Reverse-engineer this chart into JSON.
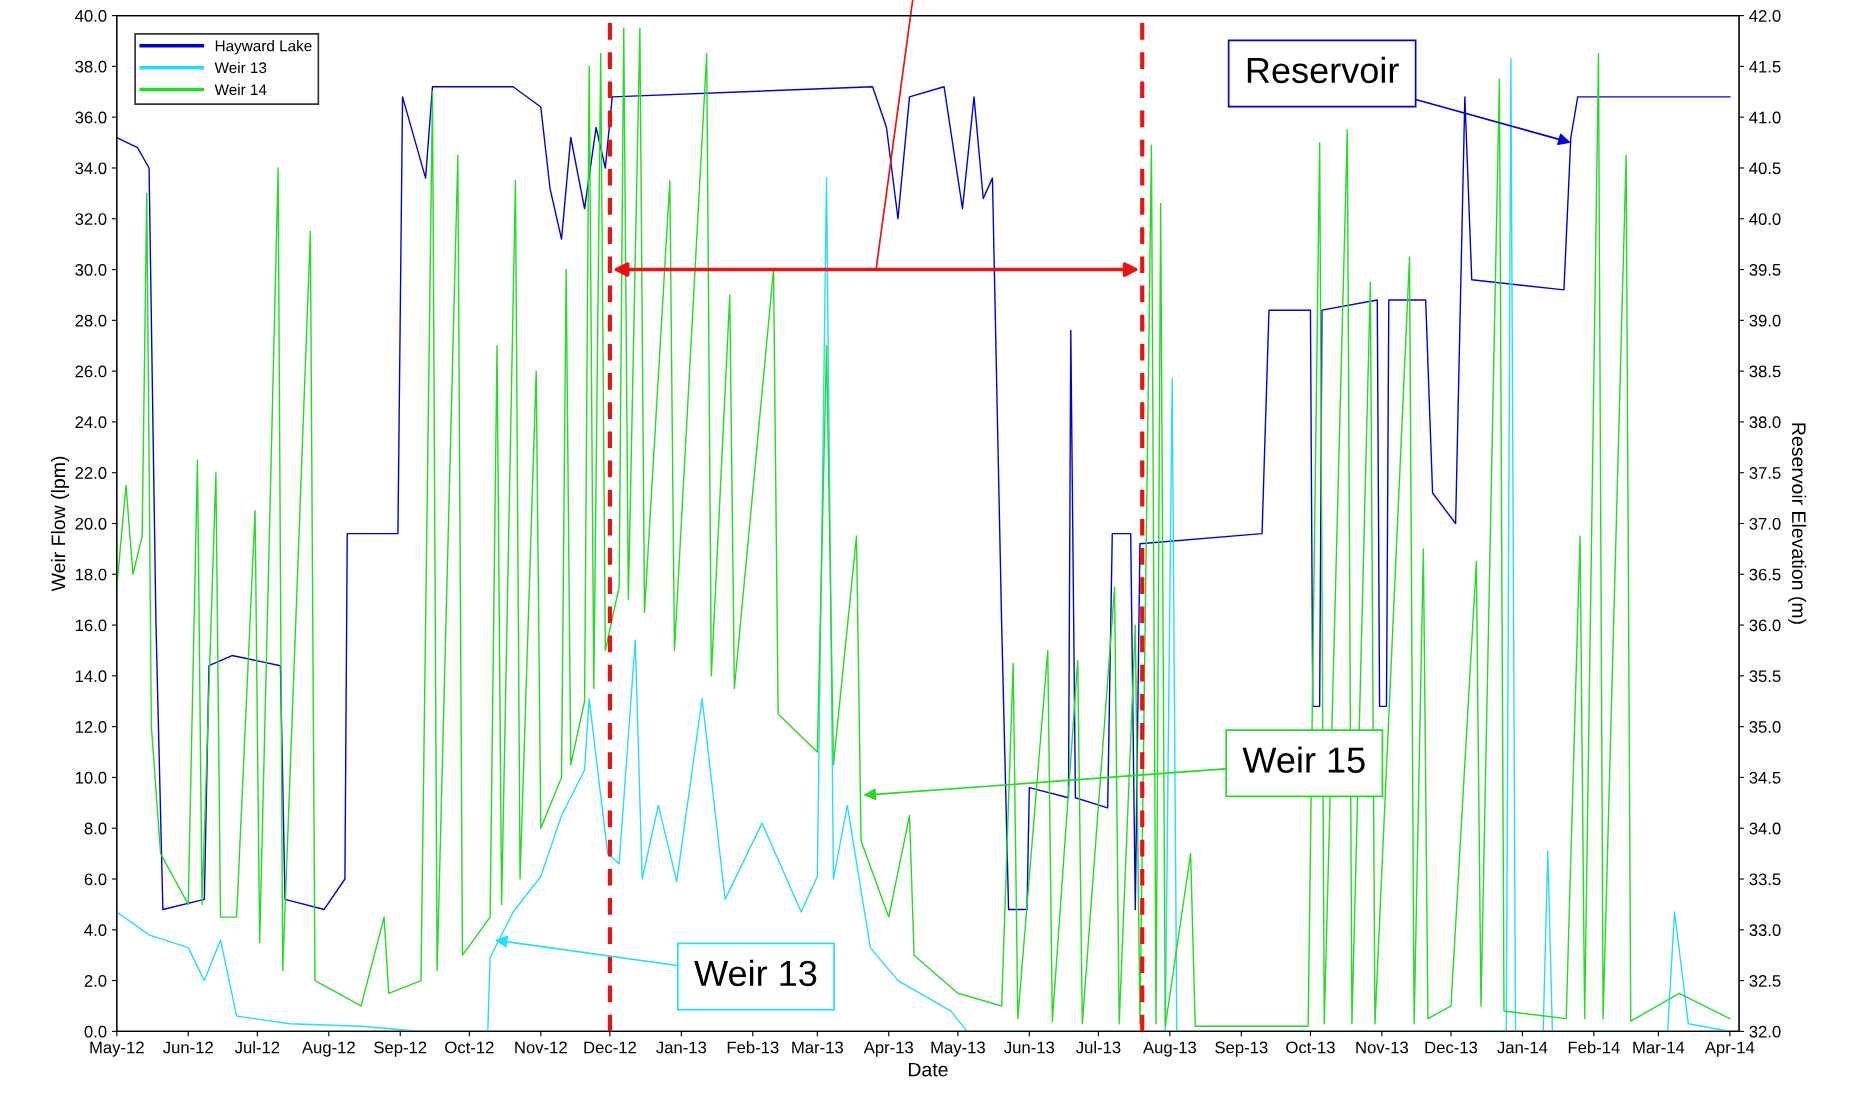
{
  "chart_data": {
    "type": "line",
    "xlabel": "Date",
    "ylabel": "Weir Flow (lpm)",
    "y2label": "Reservoir Elevation (m)",
    "xlim": [
      "2012-05-01",
      "2014-04-05"
    ],
    "xticks": [
      {
        "value": "2012-05-01",
        "label": "May-12"
      },
      {
        "value": "2012-06-01",
        "label": "Jun-12"
      },
      {
        "value": "2012-07-01",
        "label": "Jul-12"
      },
      {
        "value": "2012-08-01",
        "label": "Aug-12"
      },
      {
        "value": "2012-09-01",
        "label": "Sep-12"
      },
      {
        "value": "2012-10-01",
        "label": "Oct-12"
      },
      {
        "value": "2012-11-01",
        "label": "Nov-12"
      },
      {
        "value": "2012-12-01",
        "label": "Dec-12"
      },
      {
        "value": "2013-01-01",
        "label": "Jan-13"
      },
      {
        "value": "2013-02-01",
        "label": "Feb-13"
      },
      {
        "value": "2013-03-01",
        "label": "Mar-13"
      },
      {
        "value": "2013-04-01",
        "label": "Apr-13"
      },
      {
        "value": "2013-05-01",
        "label": "May-13"
      },
      {
        "value": "2013-06-01",
        "label": "Jun-13"
      },
      {
        "value": "2013-07-01",
        "label": "Jul-13"
      },
      {
        "value": "2013-08-01",
        "label": "Aug-13"
      },
      {
        "value": "2013-09-01",
        "label": "Sep-13"
      },
      {
        "value": "2013-10-01",
        "label": "Oct-13"
      },
      {
        "value": "2013-11-01",
        "label": "Nov-13"
      },
      {
        "value": "2013-12-01",
        "label": "Dec-13"
      },
      {
        "value": "2014-01-01",
        "label": "Jan-14"
      },
      {
        "value": "2014-02-01",
        "label": "Feb-14"
      },
      {
        "value": "2014-03-01",
        "label": "Mar-14"
      },
      {
        "value": "2014-04-01",
        "label": "Apr-14"
      }
    ],
    "ylim": [
      0,
      40
    ],
    "yticks": [
      {
        "value": 0,
        "label": "0.0"
      },
      {
        "value": 2,
        "label": "2.0"
      },
      {
        "value": 4,
        "label": "4.0"
      },
      {
        "value": 6,
        "label": "6.0"
      },
      {
        "value": 8,
        "label": "8.0"
      },
      {
        "value": 10,
        "label": "10.0"
      },
      {
        "value": 12,
        "label": "12.0"
      },
      {
        "value": 14,
        "label": "14.0"
      },
      {
        "value": 16,
        "label": "16.0"
      },
      {
        "value": 18,
        "label": "18.0"
      },
      {
        "value": 20,
        "label": "20.0"
      },
      {
        "value": 22,
        "label": "22.0"
      },
      {
        "value": 24,
        "label": "24.0"
      },
      {
        "value": 26,
        "label": "26.0"
      },
      {
        "value": 28,
        "label": "28.0"
      },
      {
        "value": 30,
        "label": "30.0"
      },
      {
        "value": 32,
        "label": "32.0"
      },
      {
        "value": 34,
        "label": "34.0"
      },
      {
        "value": 36,
        "label": "36.0"
      },
      {
        "value": 38,
        "label": "38.0"
      },
      {
        "value": 40,
        "label": "40.0"
      }
    ],
    "y2lim": [
      32,
      42
    ],
    "y2ticks": [
      {
        "value": 32,
        "label": "32.0"
      },
      32.5,
      {
        "value": 33,
        "label": "33.0"
      },
      33.5,
      {
        "value": 34,
        "label": "34.0"
      },
      34.5,
      {
        "value": 35,
        "label": "35.0"
      },
      35.5,
      {
        "value": 36,
        "label": "36.0"
      },
      36.5,
      {
        "value": 37,
        "label": "37.0"
      },
      37.5,
      {
        "value": 38,
        "label": "38.0"
      },
      38.5,
      {
        "value": 39,
        "label": "39.0"
      },
      39.5,
      {
        "value": 40,
        "label": "40.0"
      },
      40.5,
      {
        "value": 41,
        "label": "41.0"
      },
      41.5,
      {
        "value": 42,
        "label": "42.0"
      }
    ],
    "legend": "top left",
    "grid": false,
    "marker": "none",
    "line_style": "solid",
    "ref_lines": [
      {
        "axis": "x",
        "value": "2012-12-01",
        "color": "#ee1111",
        "line_style": "dashed"
      },
      {
        "axis": "x",
        "value": "2013-07-20",
        "color": "#ee1111",
        "line_style": "dashed"
      }
    ],
    "annotations": [
      {
        "text": "Reservoir",
        "x": "2014-01-22",
        "y": 35.0
      },
      {
        "text": "Weir 15",
        "x": "2013-03-21",
        "y": 9.3
      },
      {
        "text": "Weir 13",
        "x": "2012-10-12",
        "y": 3.6
      }
    ],
    "series": [
      {
        "name": "Hayward Lake",
        "color": "#0000dd",
        "axis": "y2",
        "x": [
          "2012-05-01",
          "2012-05-10",
          "2012-05-15",
          "2012-05-18",
          "2012-05-21",
          "2012-06-08",
          "2012-06-10",
          "2012-06-20",
          "2012-07-11",
          "2012-07-13",
          "2012-07-30",
          "2012-08-08",
          "2012-08-09",
          "2012-08-31",
          "2012-09-02",
          "2012-09-12",
          "2012-09-15",
          "2012-10-20",
          "2012-11-01",
          "2012-11-05",
          "2012-11-10",
          "2012-11-14",
          "2012-11-20",
          "2012-11-25",
          "2012-11-29",
          "2012-12-02",
          "2013-03-25",
          "2013-03-31",
          "2013-04-05",
          "2013-04-10",
          "2013-04-25",
          "2013-05-03",
          "2013-05-08",
          "2013-05-12",
          "2013-05-16",
          "2013-05-20",
          "2013-05-23",
          "2013-05-31",
          "2013-06-01",
          "2013-06-18",
          "2013-06-19",
          "2013-06-21",
          "2013-07-05",
          "2013-07-07",
          "2013-07-15",
          "2013-07-17",
          "2013-07-19",
          "2013-09-10",
          "2013-09-13",
          "2013-10-01",
          "2013-10-02",
          "2013-10-05",
          "2013-10-06",
          "2013-10-30",
          "2013-10-31",
          "2013-11-03",
          "2013-11-04",
          "2013-11-20",
          "2013-11-23",
          "2013-12-03",
          "2013-12-07",
          "2013-12-10",
          "2014-01-19",
          "2014-01-22",
          "2014-01-25",
          "2014-04-01"
        ],
        "values": [
          40.8,
          40.7,
          40.5,
          36.0,
          33.2,
          33.3,
          35.6,
          35.7,
          35.6,
          33.3,
          33.2,
          33.5,
          36.9,
          36.9,
          41.2,
          40.4,
          41.3,
          41.3,
          41.1,
          40.3,
          39.8,
          40.8,
          40.1,
          40.9,
          40.5,
          41.2,
          41.3,
          40.9,
          40.0,
          41.2,
          41.3,
          40.1,
          41.2,
          40.2,
          40.4,
          36.0,
          33.2,
          33.2,
          34.4,
          34.3,
          38.9,
          34.3,
          34.2,
          36.9,
          36.9,
          33.2,
          36.8,
          36.9,
          39.1,
          39.1,
          35.2,
          35.2,
          39.1,
          39.2,
          35.2,
          35.2,
          39.2,
          39.2,
          37.3,
          37.0,
          41.2,
          39.4,
          39.3,
          40.8,
          41.2,
          41.2
        ]
      },
      {
        "name": "Weir 13",
        "color": "#22ddff",
        "x": [
          "2012-05-01",
          "2012-05-15",
          "2012-06-01",
          "2012-06-08",
          "2012-06-15",
          "2012-06-22",
          "2012-07-15",
          "2012-08-15",
          "2012-09-10",
          "2012-10-09",
          "2012-10-10",
          "2012-10-20",
          "2012-11-01",
          "2012-11-10",
          "2012-11-20",
          "2012-11-22",
          "2012-11-30",
          "2012-12-05",
          "2012-12-12",
          "2012-12-15",
          "2012-12-22",
          "2012-12-30",
          "2013-01-10",
          "2013-01-20",
          "2013-02-05",
          "2013-02-22",
          "2013-03-01",
          "2013-03-05",
          "2013-03-08",
          "2013-03-14",
          "2013-03-24",
          "2013-04-05",
          "2013-04-28",
          "2013-05-05",
          "2013-07-30",
          "2013-08-02",
          "2013-08-04",
          "2013-12-25",
          "2013-12-27",
          "2013-12-29",
          "2014-01-10",
          "2014-01-12",
          "2014-01-14",
          "2014-03-05",
          "2014-03-08",
          "2014-03-14",
          "2014-04-01"
        ],
        "values": [
          4.7,
          3.8,
          3.3,
          2.0,
          3.6,
          0.6,
          0.3,
          0.2,
          0.0,
          0.0,
          2.9,
          4.7,
          6.1,
          8.5,
          10.3,
          13.1,
          7.0,
          6.6,
          15.4,
          6.0,
          8.9,
          5.9,
          13.1,
          5.2,
          8.2,
          4.7,
          6.1,
          33.6,
          6.0,
          8.9,
          3.3,
          2.0,
          0.8,
          0.0,
          0.0,
          25.7,
          0.0,
          0.0,
          38.3,
          0.0,
          0.0,
          7.1,
          0.0,
          0.0,
          4.7,
          0.3,
          0.0
        ]
      },
      {
        "name": "Weir 14",
        "color": "#22dd22",
        "x": [
          "2012-05-01",
          "2012-05-05",
          "2012-05-08",
          "2012-05-12",
          "2012-05-14",
          "2012-05-16",
          "2012-05-20",
          "2012-06-01",
          "2012-06-05",
          "2012-06-07",
          "2012-06-13",
          "2012-06-15",
          "2012-06-22",
          "2012-06-30",
          "2012-07-02",
          "2012-07-10",
          "2012-07-12",
          "2012-07-24",
          "2012-07-26",
          "2012-08-15",
          "2012-08-25",
          "2012-08-27",
          "2012-09-10",
          "2012-09-15",
          "2012-09-17",
          "2012-09-26",
          "2012-09-28",
          "2012-10-10",
          "2012-10-13",
          "2012-10-15",
          "2012-10-21",
          "2012-10-23",
          "2012-10-30",
          "2012-11-01",
          "2012-11-10",
          "2012-11-12",
          "2012-11-14",
          "2012-11-20",
          "2012-11-22",
          "2012-11-24",
          "2012-11-27",
          "2012-11-29",
          "2012-12-05",
          "2012-12-07",
          "2012-12-09",
          "2012-12-14",
          "2012-12-16",
          "2012-12-27",
          "2012-12-29",
          "2013-01-12",
          "2013-01-14",
          "2013-01-22",
          "2013-01-24",
          "2013-02-10",
          "2013-02-12",
          "2013-03-01",
          "2013-03-05",
          "2013-03-08",
          "2013-03-18",
          "2013-03-20",
          "2013-04-01",
          "2013-04-10",
          "2013-04-12",
          "2013-05-01",
          "2013-05-20",
          "2013-05-25",
          "2013-05-27",
          "2013-06-09",
          "2013-06-11",
          "2013-06-22",
          "2013-06-24",
          "2013-07-08",
          "2013-07-10",
          "2013-07-17",
          "2013-07-19",
          "2013-07-24",
          "2013-07-26",
          "2013-07-28",
          "2013-07-30",
          "2013-08-10",
          "2013-08-12",
          "2013-09-30",
          "2013-10-05",
          "2013-10-07",
          "2013-10-17",
          "2013-10-19",
          "2013-10-27",
          "2013-10-29",
          "2013-11-13",
          "2013-11-15",
          "2013-11-19",
          "2013-11-21",
          "2013-12-01",
          "2013-12-12",
          "2013-12-14",
          "2013-12-22",
          "2013-12-24",
          "2014-01-20",
          "2014-01-26",
          "2014-01-28",
          "2014-02-03",
          "2014-02-05",
          "2014-02-15",
          "2014-02-17",
          "2014-03-10",
          "2014-04-01"
        ],
        "values": [
          17.5,
          21.5,
          18.0,
          19.5,
          33.0,
          12.0,
          7.0,
          5.0,
          22.5,
          5.0,
          22.0,
          4.5,
          4.5,
          20.5,
          3.5,
          34.0,
          2.4,
          31.5,
          2.0,
          1.0,
          4.5,
          1.5,
          2.0,
          37.0,
          2.4,
          34.5,
          3.0,
          4.5,
          27.0,
          5.0,
          33.5,
          6.0,
          26.0,
          8.0,
          10.0,
          30.0,
          10.5,
          13.0,
          38.0,
          13.5,
          38.5,
          15.0,
          17.5,
          39.5,
          17.0,
          39.5,
          16.5,
          33.5,
          15.0,
          38.5,
          14.0,
          29.0,
          13.5,
          30.0,
          12.5,
          11.0,
          27.0,
          10.5,
          19.5,
          7.5,
          4.5,
          8.5,
          3.0,
          1.5,
          1.0,
          14.5,
          0.5,
          15.0,
          0.4,
          14.6,
          0.3,
          17.5,
          0.3,
          16.0,
          0.3,
          34.9,
          0.3,
          32.6,
          0.2,
          7.0,
          0.2,
          0.2,
          35.0,
          0.3,
          35.5,
          0.3,
          29.5,
          0.3,
          30.5,
          0.3,
          19.0,
          0.5,
          1.0,
          18.5,
          1.0,
          37.5,
          0.8,
          0.5,
          19.5,
          0.5,
          38.5,
          0.5,
          34.5,
          0.4,
          1.5,
          0.5
        ]
      }
    ]
  }
}
